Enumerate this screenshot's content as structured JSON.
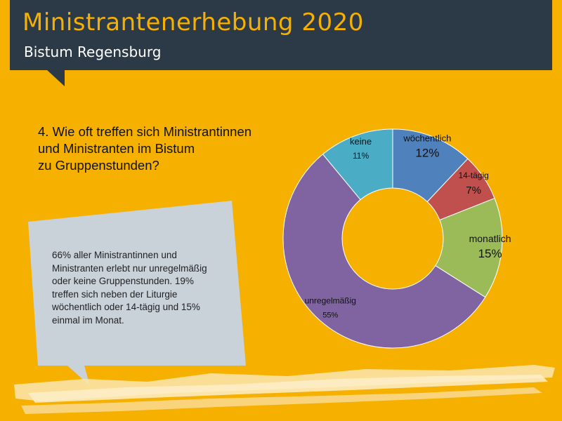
{
  "header": {
    "title": "Ministrantenerhebung 2020",
    "subtitle": "Bistum Regensburg"
  },
  "question": {
    "lines": [
      "4. Wie oft treffen sich Ministrantinnen",
      "und Ministranten im Bistum",
      "zu Gruppenstunden?"
    ]
  },
  "bubble": {
    "lines": [
      "66% aller Ministrantinnen und",
      "Ministranten erlebt nur unregelmäßig",
      "oder keine Gruppenstunden. 19%",
      "treffen sich neben der Liturgie",
      "wöchentlich oder 14-tägig und 15%",
      "einmal im Monat."
    ]
  },
  "colors": {
    "background": "#F5B000",
    "header": "#2C3A47",
    "bubble": "#C9D1D9"
  },
  "chart_data": {
    "type": "pie",
    "donut": true,
    "categories": [
      "wöchentlich",
      "14-tägig",
      "monatlich",
      "unregelmäßig",
      "keine"
    ],
    "values": [
      12,
      7,
      15,
      55,
      11
    ],
    "value_labels": [
      "12%",
      "7%",
      "15%",
      "55%",
      "11%"
    ],
    "colors": [
      "#4F81BD",
      "#C0504D",
      "#9BBB59",
      "#8064A2",
      "#4BACC6"
    ],
    "start_angle_deg": 0,
    "direction": "clockwise"
  }
}
